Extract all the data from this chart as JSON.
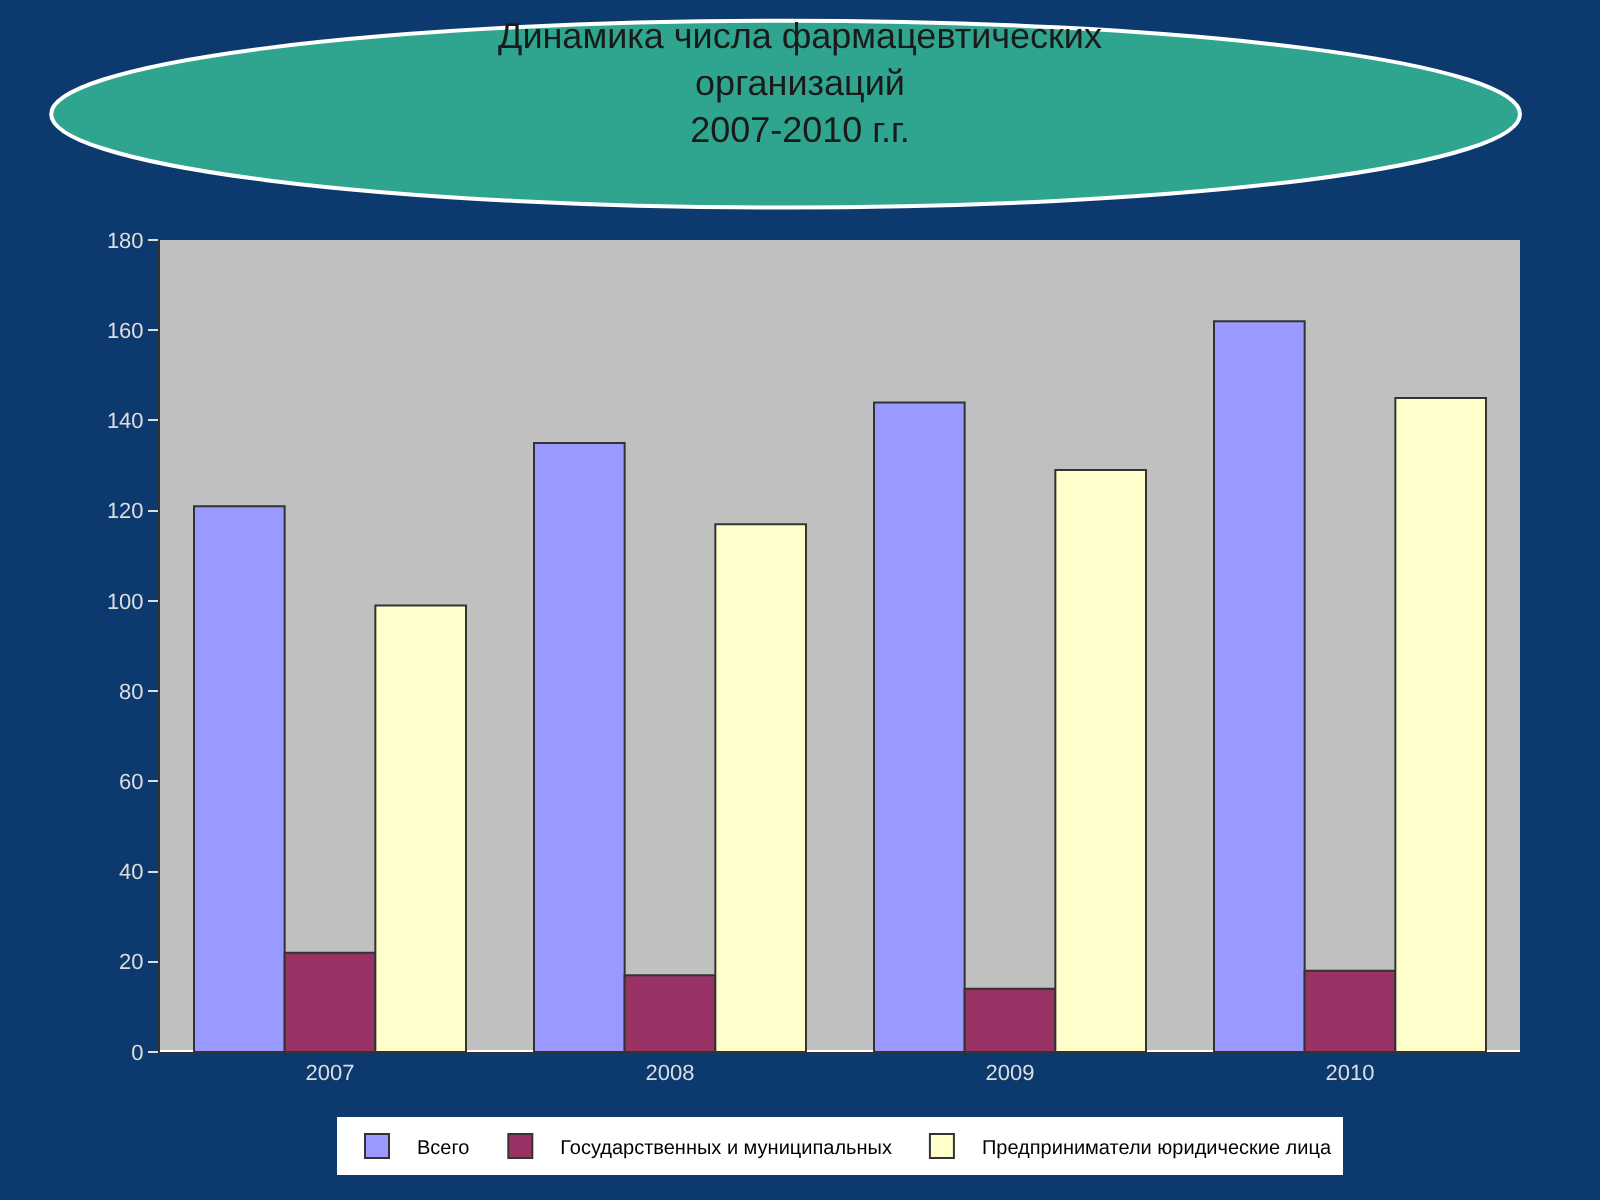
{
  "chart_data": {
    "type": "bar",
    "title": "Динамика числа фармацевтических\nорганизаций\n2007-2010 г.г.",
    "categories": [
      "2007",
      "2008",
      "2009",
      "2010"
    ],
    "series": [
      {
        "name": "Всего",
        "color": "#9999ff",
        "values": [
          121,
          135,
          144,
          162
        ]
      },
      {
        "name": "Государственных и муниципальных",
        "color": "#993366",
        "values": [
          22,
          17,
          14,
          18
        ]
      },
      {
        "name": "Предприниматели юридические лица",
        "color": "#ffffcc",
        "values": [
          99,
          117,
          129,
          145
        ]
      }
    ],
    "ylim": [
      0,
      180
    ],
    "yticks": [
      0,
      20,
      40,
      60,
      80,
      100,
      120,
      140,
      160,
      180
    ],
    "grid": false,
    "legend": "bottom"
  }
}
